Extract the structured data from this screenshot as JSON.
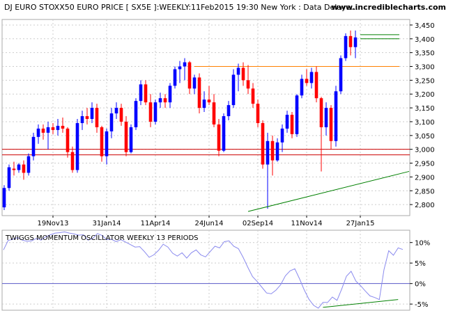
{
  "chart_data": [
    {
      "type": "candlestick",
      "title": "DJ EURO STOXX50 EURO PRICE [ SX5E ]:WEEKLY:11Feb2015 19:30 New York : Data Delaye...",
      "source_label": "www.incrediblecharts.com",
      "ylim": [
        2760,
        3470
      ],
      "y_ticks": [
        2800,
        2850,
        2900,
        2950,
        3000,
        3050,
        3100,
        3150,
        3200,
        3250,
        3300,
        3350,
        3400,
        3450
      ],
      "y_tick_labels": [
        "2,800",
        "2,850",
        "2,900",
        "2,950",
        "3,000",
        "3,050",
        "3,100",
        "3,150",
        "3,200",
        "3,250",
        "3,300",
        "3,350",
        "3,400",
        "3,450"
      ],
      "x_tick_labels": [
        {
          "label": "19Nov13",
          "bar": 10
        },
        {
          "label": "31Jan14",
          "bar": 21
        },
        {
          "label": "11Apr14",
          "bar": 31
        },
        {
          "label": "24Jun14",
          "bar": 42
        },
        {
          "label": "02Sep14",
          "bar": 52
        },
        {
          "label": "11Nov14",
          "bar": 62
        },
        {
          "label": "27Jan15",
          "bar": 73
        }
      ],
      "grid": true,
      "up_color": "#0000ff",
      "down_color": "#ff0000",
      "support_lines": [
        {
          "value": 3000,
          "color": "#cc0000"
        },
        {
          "value": 2980,
          "color": "#cc0000"
        }
      ],
      "resistance_lines": [
        {
          "value": 3300,
          "from_bar": 39,
          "to_bar": 81,
          "color": "#ff8000"
        },
        {
          "value": 3415,
          "from_bar": 73,
          "to_bar": 81,
          "color": "#008000"
        },
        {
          "value": 3400,
          "from_bar": 73,
          "to_bar": 81,
          "color": "#008000"
        }
      ],
      "trendline": {
        "from_bar": 50,
        "from_value": 2775,
        "to_bar": 83,
        "to_value": 2920,
        "color": "#008000"
      },
      "bars": [
        {
          "o": 2790,
          "h": 2870,
          "l": 2780,
          "c": 2860
        },
        {
          "o": 2860,
          "h": 2945,
          "l": 2850,
          "c": 2935
        },
        {
          "o": 2930,
          "h": 2955,
          "l": 2905,
          "c": 2925
        },
        {
          "o": 2925,
          "h": 2950,
          "l": 2915,
          "c": 2945
        },
        {
          "o": 2945,
          "h": 2960,
          "l": 2890,
          "c": 2915
        },
        {
          "o": 2915,
          "h": 2985,
          "l": 2905,
          "c": 2975
        },
        {
          "o": 2975,
          "h": 3060,
          "l": 2960,
          "c": 3045
        },
        {
          "o": 3045,
          "h": 3090,
          "l": 3020,
          "c": 3075
        },
        {
          "o": 3075,
          "h": 3090,
          "l": 3035,
          "c": 3060
        },
        {
          "o": 3060,
          "h": 3100,
          "l": 3000,
          "c": 3080
        },
        {
          "o": 3080,
          "h": 3095,
          "l": 3055,
          "c": 3070
        },
        {
          "o": 3070,
          "h": 3110,
          "l": 3050,
          "c": 3085
        },
        {
          "o": 3085,
          "h": 3115,
          "l": 3060,
          "c": 3075
        },
        {
          "o": 3075,
          "h": 3080,
          "l": 2970,
          "c": 2990
        },
        {
          "o": 2990,
          "h": 3010,
          "l": 2915,
          "c": 2925
        },
        {
          "o": 2925,
          "h": 3110,
          "l": 2915,
          "c": 3095
        },
        {
          "o": 3095,
          "h": 3140,
          "l": 3070,
          "c": 3120
        },
        {
          "o": 3120,
          "h": 3150,
          "l": 3090,
          "c": 3110
        },
        {
          "o": 3110,
          "h": 3170,
          "l": 3095,
          "c": 3150
        },
        {
          "o": 3150,
          "h": 3165,
          "l": 3060,
          "c": 3080
        },
        {
          "o": 3080,
          "h": 3085,
          "l": 2955,
          "c": 2975
        },
        {
          "o": 2975,
          "h": 3075,
          "l": 2945,
          "c": 3065
        },
        {
          "o": 3065,
          "h": 3150,
          "l": 3040,
          "c": 3130
        },
        {
          "o": 3130,
          "h": 3170,
          "l": 3110,
          "c": 3150
        },
        {
          "o": 3150,
          "h": 3165,
          "l": 3085,
          "c": 3100
        },
        {
          "o": 3100,
          "h": 3120,
          "l": 2975,
          "c": 2990
        },
        {
          "o": 2990,
          "h": 3090,
          "l": 2985,
          "c": 3080
        },
        {
          "o": 3080,
          "h": 3185,
          "l": 3070,
          "c": 3175
        },
        {
          "o": 3175,
          "h": 3250,
          "l": 3160,
          "c": 3235
        },
        {
          "o": 3235,
          "h": 3250,
          "l": 3160,
          "c": 3170
        },
        {
          "o": 3170,
          "h": 3200,
          "l": 3080,
          "c": 3100
        },
        {
          "o": 3100,
          "h": 3180,
          "l": 3090,
          "c": 3170
        },
        {
          "o": 3170,
          "h": 3205,
          "l": 3150,
          "c": 3185
        },
        {
          "o": 3185,
          "h": 3200,
          "l": 3150,
          "c": 3170
        },
        {
          "o": 3170,
          "h": 3240,
          "l": 3150,
          "c": 3230
        },
        {
          "o": 3230,
          "h": 3300,
          "l": 3220,
          "c": 3290
        },
        {
          "o": 3290,
          "h": 3320,
          "l": 3240,
          "c": 3300
        },
        {
          "o": 3300,
          "h": 3330,
          "l": 3250,
          "c": 3315
        },
        {
          "o": 3315,
          "h": 3320,
          "l": 3200,
          "c": 3220
        },
        {
          "o": 3220,
          "h": 3270,
          "l": 3200,
          "c": 3260
        },
        {
          "o": 3260,
          "h": 3275,
          "l": 3130,
          "c": 3150
        },
        {
          "o": 3150,
          "h": 3210,
          "l": 3135,
          "c": 3180
        },
        {
          "o": 3180,
          "h": 3230,
          "l": 3160,
          "c": 3170
        },
        {
          "o": 3170,
          "h": 3200,
          "l": 3080,
          "c": 3090
        },
        {
          "o": 3090,
          "h": 3110,
          "l": 2975,
          "c": 2995
        },
        {
          "o": 2995,
          "h": 3130,
          "l": 2990,
          "c": 3120
        },
        {
          "o": 3120,
          "h": 3175,
          "l": 3105,
          "c": 3160
        },
        {
          "o": 3160,
          "h": 3290,
          "l": 3150,
          "c": 3270
        },
        {
          "o": 3270,
          "h": 3310,
          "l": 3210,
          "c": 3295
        },
        {
          "o": 3295,
          "h": 3315,
          "l": 3230,
          "c": 3250
        },
        {
          "o": 3250,
          "h": 3305,
          "l": 3200,
          "c": 3220
        },
        {
          "o": 3220,
          "h": 3240,
          "l": 3150,
          "c": 3165
        },
        {
          "o": 3165,
          "h": 3180,
          "l": 3080,
          "c": 3095
        },
        {
          "o": 3095,
          "h": 3105,
          "l": 2930,
          "c": 2945
        },
        {
          "o": 2945,
          "h": 3060,
          "l": 2785,
          "c": 3030
        },
        {
          "o": 3030,
          "h": 3050,
          "l": 2905,
          "c": 2960
        },
        {
          "o": 2960,
          "h": 3040,
          "l": 2955,
          "c": 3025
        },
        {
          "o": 3025,
          "h": 3090,
          "l": 2990,
          "c": 3075
        },
        {
          "o": 3075,
          "h": 3140,
          "l": 3060,
          "c": 3125
        },
        {
          "o": 3125,
          "h": 3135,
          "l": 3040,
          "c": 3055
        },
        {
          "o": 3055,
          "h": 3200,
          "l": 3045,
          "c": 3195
        },
        {
          "o": 3195,
          "h": 3270,
          "l": 3185,
          "c": 3255
        },
        {
          "o": 3255,
          "h": 3290,
          "l": 3230,
          "c": 3240
        },
        {
          "o": 3240,
          "h": 3295,
          "l": 3220,
          "c": 3280
        },
        {
          "o": 3280,
          "h": 3300,
          "l": 3170,
          "c": 3185
        },
        {
          "o": 3185,
          "h": 3190,
          "l": 2920,
          "c": 3080
        },
        {
          "o": 3080,
          "h": 3170,
          "l": 3050,
          "c": 3150
        },
        {
          "o": 3150,
          "h": 3160,
          "l": 3000,
          "c": 3030
        },
        {
          "o": 3030,
          "h": 3230,
          "l": 3010,
          "c": 3210
        },
        {
          "o": 3210,
          "h": 3340,
          "l": 3200,
          "c": 3330
        },
        {
          "o": 3330,
          "h": 3420,
          "l": 3320,
          "c": 3410
        },
        {
          "o": 3410,
          "h": 3430,
          "l": 3340,
          "c": 3370
        },
        {
          "o": 3370,
          "h": 3430,
          "l": 3330,
          "c": 3405
        }
      ]
    },
    {
      "type": "line",
      "title": "TWIGGS MOMENTUM OSCILLATOR WEEKLY 13 PERIODS",
      "ylim": [
        -6.5,
        13
      ],
      "y_ticks": [
        10,
        5,
        0,
        -5
      ],
      "y_tick_labels": [
        "10%",
        "5%",
        "0%",
        "-5%"
      ],
      "zero_line": true,
      "series": [
        {
          "color": "#8a8aee",
          "values": [
            8.2,
            10.5,
            10.8,
            11.2,
            10.6,
            10.3,
            10.4,
            11.0,
            10.6,
            11.4,
            11.9,
            12.3,
            12.4,
            12.6,
            12.3,
            12.1,
            11.8,
            11.9,
            10.6,
            11.0,
            12.2,
            11.7,
            10.7,
            10.8,
            10.2,
            10.7,
            10.1,
            9.5,
            8.9,
            9.0,
            7.8,
            6.4,
            7.0,
            8.1,
            9.6,
            8.9,
            7.4,
            6.7,
            7.5,
            6.2,
            7.5,
            8.2,
            7.0,
            6.5,
            7.8,
            9.1,
            8.7,
            10.2,
            10.4,
            9.1,
            8.5,
            6.4,
            4.0,
            1.7,
            0.5,
            -0.9,
            -2.3,
            -2.5,
            -1.6,
            -0.3,
            1.9,
            3.1,
            3.6,
            1.2,
            -1.5,
            -3.8,
            -5.3,
            -6.0,
            -4.6,
            -4.6,
            -3.3,
            -4.1,
            -1.3,
            1.8,
            3.0,
            0.6,
            -0.5,
            -1.8,
            -3.0,
            -3.4,
            -3.9,
            3.4,
            8.0,
            6.9,
            8.7,
            8.3
          ]
        }
      ],
      "trendline": {
        "from_index": 68,
        "from_value": -5.8,
        "to_index": 84,
        "to_value": -3.9,
        "color": "#008000"
      }
    }
  ]
}
